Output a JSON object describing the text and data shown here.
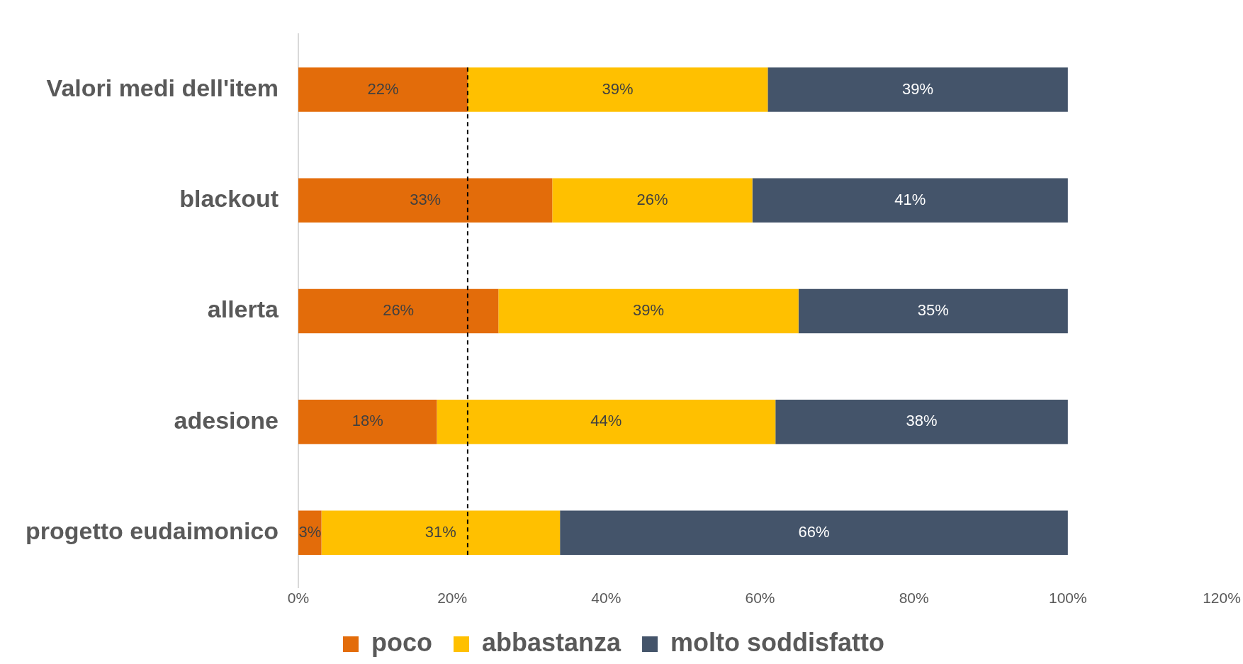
{
  "chart_data": {
    "type": "bar",
    "orientation": "horizontal",
    "stacked": true,
    "categories": [
      "Valori medi dell'item",
      "blackout",
      "allerta",
      "adesione",
      "progetto eudaimonico"
    ],
    "series": [
      {
        "name": "poco",
        "color": "#e36c0a",
        "values": [
          22,
          33,
          26,
          18,
          3
        ],
        "value_labels": [
          "22%",
          "33%",
          "26%",
          "18%",
          "3%"
        ]
      },
      {
        "name": "abbastanza",
        "color": "#ffc000",
        "values": [
          39,
          26,
          39,
          44,
          31
        ],
        "value_labels": [
          "39%",
          "26%",
          "39%",
          "44%",
          "31%"
        ]
      },
      {
        "name": "molto soddisfatto",
        "color": "#44546a",
        "values": [
          39,
          41,
          35,
          38,
          66
        ],
        "value_labels": [
          "39%",
          "41%",
          "35%",
          "38%",
          "66%"
        ]
      }
    ],
    "xlim": [
      0,
      120
    ],
    "xticks": [
      {
        "value": 0,
        "label": "0%"
      },
      {
        "value": 20,
        "label": "20%"
      },
      {
        "value": 40,
        "label": "40%"
      },
      {
        "value": 60,
        "label": "60%"
      },
      {
        "value": 80,
        "label": "80%"
      },
      {
        "value": 100,
        "label": "100%"
      },
      {
        "value": 120,
        "label": "120%"
      }
    ],
    "ref_lines": [
      {
        "axis": "x",
        "value": 22,
        "color": "#000000",
        "line_style": "dashed"
      }
    ],
    "grid": false,
    "legend": "bottom"
  }
}
